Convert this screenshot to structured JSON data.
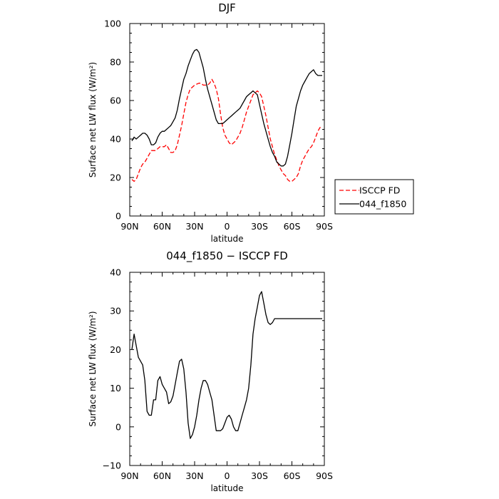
{
  "chart_data": [
    {
      "type": "line",
      "title": "DJF",
      "xlabel": "latitude",
      "ylabel": "Surface net LW flux (W/m²)",
      "xlim": [
        -90,
        90
      ],
      "ylim": [
        0,
        100
      ],
      "x_ticks": [
        -90,
        -60,
        -30,
        0,
        30,
        60,
        90
      ],
      "x_tick_labels": [
        "90N",
        "60N",
        "30N",
        "0",
        "30S",
        "60S",
        "90S"
      ],
      "y_ticks": [
        0,
        20,
        40,
        60,
        80,
        100
      ],
      "y_tick_labels": [
        "0",
        "20",
        "40",
        "60",
        "80",
        "100"
      ],
      "legend_position": "right",
      "series": [
        {
          "name": "ISCCP FD",
          "color": "#ff0000",
          "dash": "dashed",
          "x": [
            -88,
            -86,
            -84,
            -82,
            -80,
            -78,
            -76,
            -74,
            -72,
            -70,
            -68,
            -66,
            -64,
            -62,
            -60,
            -58,
            -56,
            -54,
            -52,
            -50,
            -48,
            -46,
            -44,
            -42,
            -40,
            -38,
            -36,
            -34,
            -32,
            -30,
            -28,
            -26,
            -24,
            -22,
            -20,
            -18,
            -16,
            -14,
            -12,
            -10,
            -8,
            -6,
            -4,
            -2,
            0,
            2,
            4,
            6,
            8,
            10,
            12,
            14,
            16,
            18,
            20,
            22,
            24,
            26,
            28,
            30,
            32,
            34,
            36,
            38,
            40,
            42,
            44,
            46,
            48,
            50,
            52,
            54,
            56,
            58,
            60,
            62,
            64,
            66,
            68,
            70,
            72,
            74,
            76,
            78,
            80,
            82,
            84,
            86,
            88
          ],
          "y": [
            19,
            18,
            19,
            22,
            25,
            27,
            28,
            30,
            32,
            34,
            34,
            34,
            35,
            36,
            36,
            36,
            37,
            35,
            33,
            33,
            34,
            37,
            42,
            47,
            53,
            59,
            63,
            66,
            67,
            68,
            68.5,
            69,
            69,
            68,
            68,
            68,
            69,
            71,
            69,
            66,
            61,
            53,
            46,
            42,
            40,
            38,
            37,
            38,
            39,
            41,
            43,
            46,
            50,
            54,
            57,
            60,
            63,
            64,
            65,
            64,
            62,
            57,
            52,
            46,
            40,
            36,
            32,
            29,
            26,
            24,
            22,
            21,
            19,
            18,
            18,
            19,
            20,
            22,
            26,
            29,
            31,
            33,
            35,
            36,
            38,
            41,
            44,
            46,
            46
          ]
        },
        {
          "name": "044_f1850",
          "color": "#000000",
          "dash": "solid",
          "x": [
            -88,
            -86,
            -84,
            -82,
            -80,
            -78,
            -76,
            -74,
            -72,
            -70,
            -68,
            -66,
            -64,
            -62,
            -60,
            -58,
            -56,
            -54,
            -52,
            -50,
            -48,
            -46,
            -44,
            -42,
            -40,
            -38,
            -36,
            -34,
            -32,
            -30,
            -28,
            -26,
            -24,
            -22,
            -20,
            -18,
            -16,
            -14,
            -12,
            -10,
            -8,
            -6,
            -4,
            -2,
            0,
            2,
            4,
            6,
            8,
            10,
            12,
            14,
            16,
            18,
            20,
            22,
            24,
            26,
            28,
            30,
            32,
            34,
            36,
            38,
            40,
            42,
            44,
            46,
            48,
            50,
            52,
            54,
            56,
            58,
            60,
            62,
            64,
            66,
            68,
            70,
            72,
            74,
            76,
            78,
            80,
            82,
            84,
            86,
            88
          ],
          "y": [
            39,
            41,
            40,
            41,
            42,
            43,
            43,
            42,
            40,
            37,
            37,
            38,
            41,
            43,
            44,
            44,
            45,
            46,
            47,
            49,
            51,
            55,
            61,
            66,
            71,
            74,
            78,
            81,
            84,
            86,
            86.5,
            85,
            81,
            77,
            71,
            66,
            62,
            58,
            54,
            50,
            48,
            48,
            48,
            49,
            50,
            51,
            52,
            53,
            54,
            55,
            56,
            58,
            60,
            62,
            63,
            64,
            65,
            64,
            63,
            58,
            53,
            48,
            44,
            40,
            36,
            33,
            31,
            28,
            27,
            26,
            26,
            27,
            31,
            37,
            43,
            50,
            57,
            61,
            65,
            68,
            70,
            72,
            74,
            75,
            76,
            74,
            73,
            73,
            73
          ]
        }
      ]
    },
    {
      "type": "line",
      "title": "044_f1850 − ISCCP FD",
      "xlabel": "latitude",
      "ylabel": "Surface net LW flux (W/m²)",
      "xlim": [
        -90,
        90
      ],
      "ylim": [
        -10,
        40
      ],
      "x_ticks": [
        -90,
        -60,
        -30,
        0,
        30,
        60,
        90
      ],
      "x_tick_labels": [
        "90N",
        "60N",
        "30N",
        "0",
        "30S",
        "60S",
        "90S"
      ],
      "y_ticks": [
        -10,
        0,
        10,
        20,
        30,
        40
      ],
      "y_tick_labels": [
        "−10",
        "0",
        "10",
        "20",
        "30",
        "40"
      ],
      "series": [
        {
          "color": "#000000",
          "dash": "solid",
          "x": [
            -88,
            -86,
            -84,
            -82,
            -80,
            -78,
            -76,
            -74,
            -72,
            -70,
            -68,
            -66,
            -64,
            -62,
            -60,
            -58,
            -56,
            -54,
            -52,
            -50,
            -48,
            -46,
            -44,
            -42,
            -40,
            -38,
            -36,
            -34,
            -32,
            -30,
            -28,
            -26,
            -24,
            -22,
            -20,
            -18,
            -16,
            -14,
            -12,
            -10,
            -8,
            -6,
            -4,
            -2,
            0,
            2,
            4,
            6,
            8,
            10,
            12,
            14,
            16,
            18,
            20,
            22,
            24,
            26,
            28,
            30,
            32,
            34,
            36,
            38,
            40,
            42,
            44,
            46,
            48,
            50,
            52,
            54,
            56,
            58,
            60,
            62,
            64,
            66,
            68,
            70,
            72,
            74,
            76,
            78,
            80,
            82,
            84,
            86,
            88
          ],
          "y": [
            20,
            24,
            21,
            18,
            17,
            16,
            12,
            4,
            3,
            3,
            7,
            7,
            12,
            13,
            11,
            10,
            9,
            6,
            6.5,
            8,
            11,
            14,
            17,
            17.5,
            15,
            9,
            1,
            -3,
            -2,
            0,
            3,
            7,
            10,
            12,
            12,
            11,
            9,
            7,
            3,
            -1,
            -1,
            -1,
            -0.5,
            1,
            2.5,
            3,
            2,
            0,
            -1,
            -1,
            1,
            3,
            5,
            7,
            10,
            16,
            24,
            28,
            31,
            34,
            35,
            32,
            29,
            27,
            26.5,
            27,
            28,
            28,
            28,
            28,
            28,
            28,
            28,
            28,
            28,
            28,
            28,
            28,
            28,
            28,
            28,
            28,
            28,
            28,
            28,
            28,
            28,
            28,
            28
          ]
        }
      ]
    }
  ]
}
